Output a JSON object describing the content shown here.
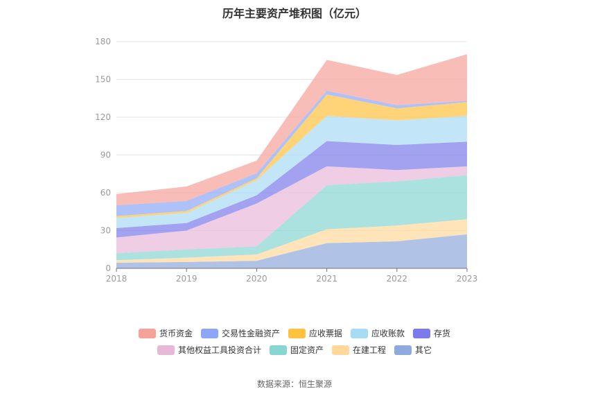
{
  "chart_data": {
    "type": "area",
    "stacked": true,
    "title": "历年主要资产堆积图（亿元）",
    "source": "数据来源：恒生聚源",
    "categories": [
      "2018",
      "2019",
      "2020",
      "2021",
      "2022",
      "2023"
    ],
    "ylim": [
      0,
      180
    ],
    "yticks": [
      0,
      30,
      60,
      90,
      120,
      150,
      180
    ],
    "grid": true,
    "legend_position": "bottom",
    "series": [
      {
        "name": "其它",
        "color": "#8FAADC",
        "values": [
          4.5,
          5,
          6,
          20,
          21.5,
          27
        ]
      },
      {
        "name": "在建工程",
        "color": "#FFD89B",
        "values": [
          2,
          3.5,
          5,
          11,
          12.5,
          12
        ]
      },
      {
        "name": "固定资产",
        "color": "#87D6D2",
        "values": [
          5.5,
          6.5,
          6.5,
          35,
          35,
          35
        ]
      },
      {
        "name": "其他权益工具投资合计",
        "color": "#E8B8D8",
        "values": [
          12.5,
          15,
          34,
          15,
          9,
          7
        ]
      },
      {
        "name": "存货",
        "color": "#7B7BEB",
        "values": [
          7.5,
          6,
          6.5,
          20,
          20,
          19.5
        ]
      },
      {
        "name": "应收账款",
        "color": "#A8DCF5",
        "values": [
          8,
          8,
          12,
          20,
          19.5,
          20.5
        ]
      },
      {
        "name": "应收票据",
        "color": "#FFC23E",
        "values": [
          1.5,
          1.5,
          1.5,
          17,
          9.5,
          11
        ]
      },
      {
        "name": "交易性金融资产",
        "color": "#8CA7F6",
        "values": [
          8.5,
          8,
          4,
          3,
          2.5,
          1
        ]
      },
      {
        "name": "货币资金",
        "color": "#F6A19A",
        "values": [
          9,
          11.5,
          10,
          24.5,
          24,
          37
        ]
      }
    ],
    "legend_order": [
      "货币资金",
      "交易性金融资产",
      "应收票据",
      "应收账款",
      "存货",
      "其他权益工具投资合计",
      "固定资产",
      "在建工程",
      "其它"
    ]
  }
}
